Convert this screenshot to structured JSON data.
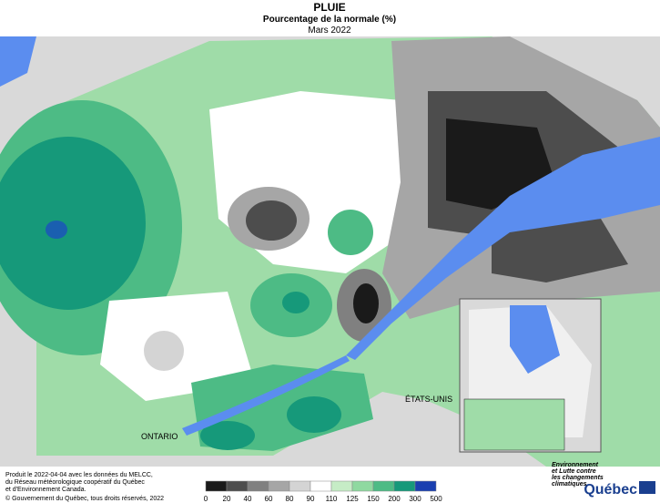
{
  "header": {
    "title": "PLUIE",
    "subtitle": "Pourcentage de la normale (%)",
    "period": "Mars 2022"
  },
  "labels": {
    "ontario": "ONTARIO",
    "etats_unis": "ÉTATS-UNIS"
  },
  "legend": {
    "ticks": [
      0,
      20,
      40,
      60,
      80,
      90,
      110,
      125,
      150,
      200,
      300,
      500
    ],
    "colors": [
      "#1a1a1a",
      "#4d4d4d",
      "#808080",
      "#a6a6a6",
      "#d4d4d4",
      "#ffffff",
      "#c6ecc6",
      "#8fd9a0",
      "#4dbb85",
      "#16997a",
      "#1a3fb0"
    ]
  },
  "footer": {
    "lines": [
      "Produit le 2022-04-04 avec les données du MELCC,",
      "du Réseau météorologique coopératif du Québec",
      "et d'Environnement Canada."
    ],
    "copyright": "© Gouvernement du Québec, tous droits réservés, 2022"
  },
  "logo": {
    "lines": [
      "Environnement",
      "et Lutte contre",
      "les changements",
      "climatiques"
    ],
    "name": "Québec"
  }
}
